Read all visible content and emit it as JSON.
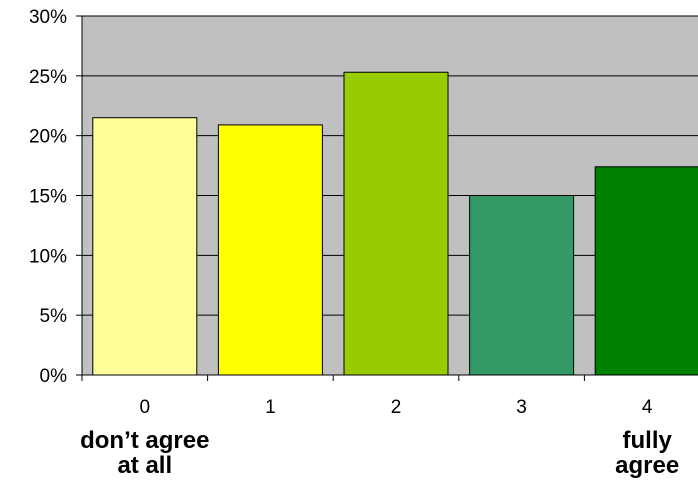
{
  "chart_data": {
    "type": "bar",
    "categories": [
      "0",
      "1",
      "2",
      "3",
      "4"
    ],
    "values": [
      21.5,
      20.9,
      25.3,
      15.0,
      17.4
    ],
    "bar_colors": [
      "#ffff99",
      "#ffff00",
      "#99cc00",
      "#339966",
      "#008000"
    ],
    "y_ticks": [
      "0%",
      "5%",
      "10%",
      "15%",
      "20%",
      "25%",
      "30%"
    ],
    "ylim": [
      0,
      30
    ],
    "grid": true,
    "plot_background": "#c0c0c0",
    "title": "",
    "xlabel": "",
    "ylabel": "",
    "anchor_labels": {
      "low": [
        "don’t agree",
        "at all"
      ],
      "high": [
        "fully",
        "agree"
      ]
    }
  }
}
